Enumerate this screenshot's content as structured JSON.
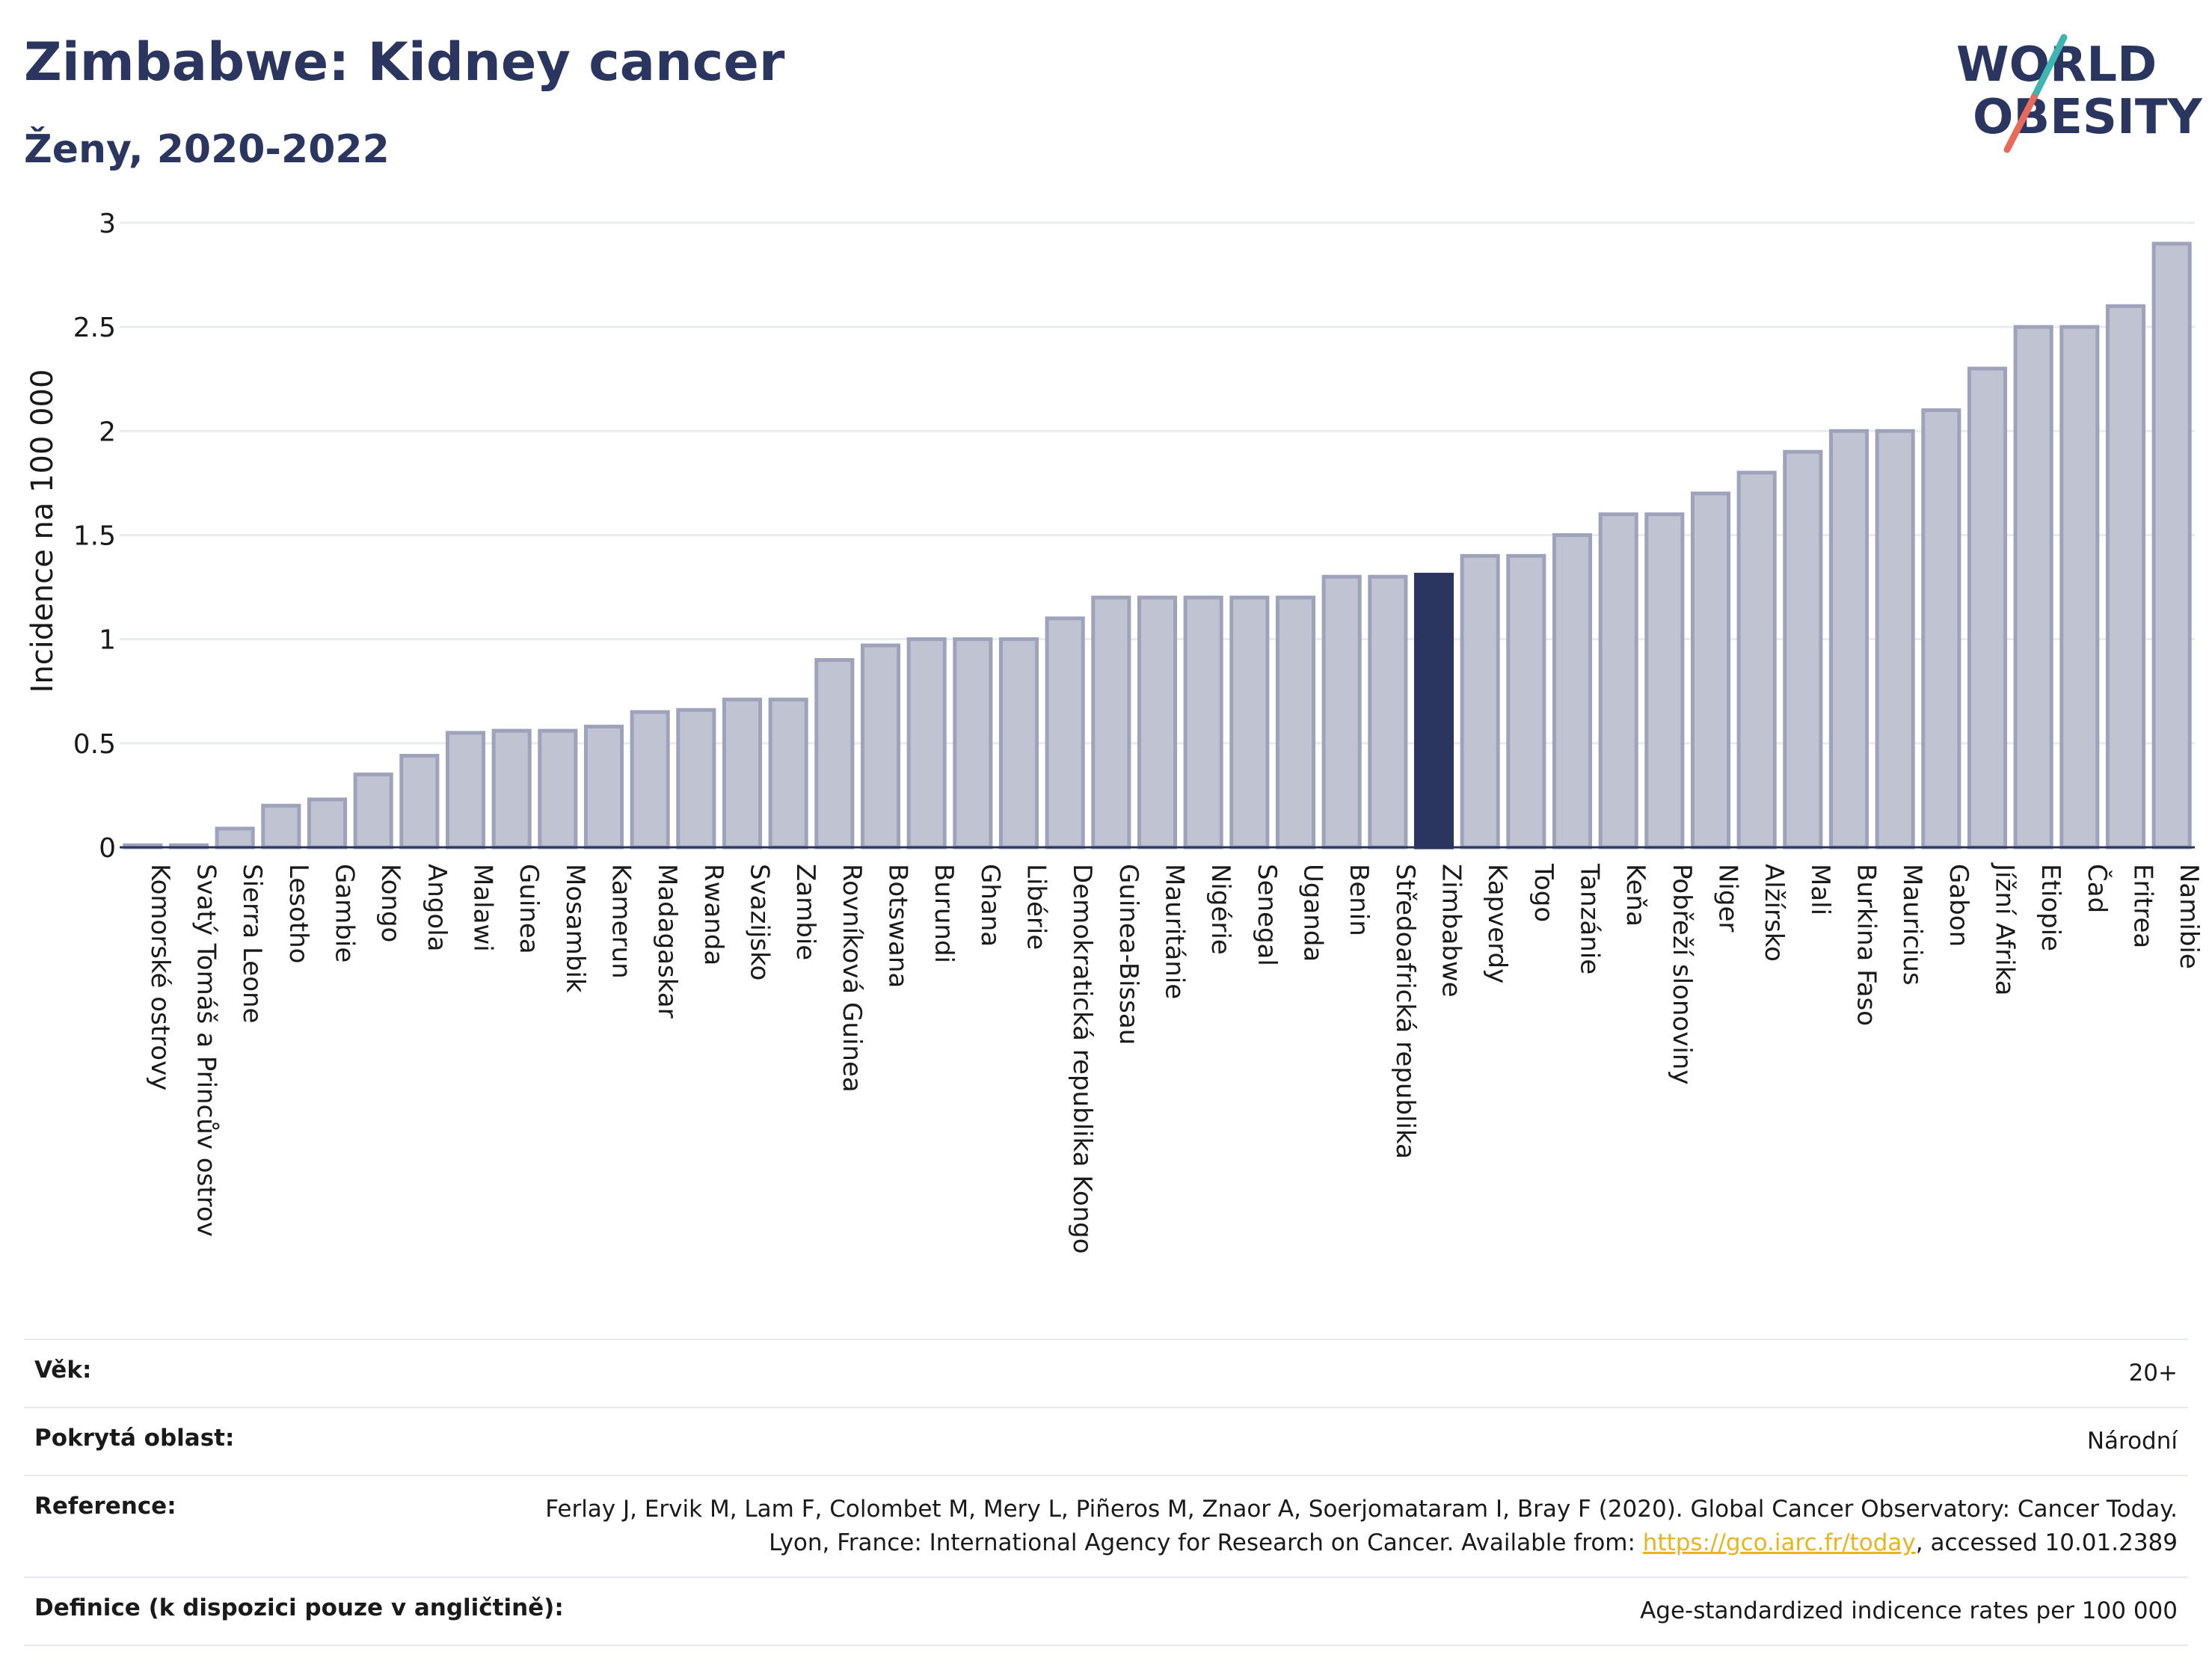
{
  "title": "Zimbabwe: Kidney cancer",
  "subtitle": "Ženy, 2020-2022",
  "logo": {
    "line1": "WORLD",
    "line2": "OBESITY"
  },
  "colors": {
    "bar": "#bfc3d2",
    "bar_edge": "#9ea3bb",
    "highlight": "#2b3660",
    "grid": "#e8ebf0",
    "title": "#2b3660",
    "link": "#e8b51e"
  },
  "chart_data": {
    "type": "bar",
    "ylabel": "Incidence na 100 000",
    "ylim": [
      0,
      3
    ],
    "yticks": [
      "0",
      "0.5",
      "1",
      "1.5",
      "2",
      "2.5",
      "3"
    ],
    "highlight": "Zimbabwe",
    "categories": [
      "Komorské ostrovy",
      "Svatý Tomáš a Princův ostrov",
      "Sierra Leone",
      "Lesotho",
      "Gambie",
      "Kongo",
      "Angola",
      "Malawi",
      "Guinea",
      "Mosambik",
      "Kamerun",
      "Madagaskar",
      "Rwanda",
      "Svazijsko",
      "Zambie",
      "Rovníková Guinea",
      "Botswana",
      "Burundi",
      "Ghana",
      "Libérie",
      "Demokratická republika Kongo",
      "Guinea-Bissau",
      "Mauritánie",
      "Nigérie",
      "Senegal",
      "Uganda",
      "Benin",
      "Středoafrická republika",
      "Zimbabwe",
      "Kapverdy",
      "Togo",
      "Tanzánie",
      "Keňa",
      "Pobřeží slonoviny",
      "Niger",
      "Alžírsko",
      "Mali",
      "Burkina Faso",
      "Mauricius",
      "Gabon",
      "Jížní Afrika",
      "Etiopie",
      "Čad",
      "Eritrea",
      "Namibie"
    ],
    "values": [
      0.01,
      0.01,
      0.09,
      0.2,
      0.23,
      0.35,
      0.44,
      0.55,
      0.56,
      0.56,
      0.58,
      0.65,
      0.66,
      0.71,
      0.71,
      0.9,
      0.97,
      1.0,
      1.0,
      1.0,
      1.1,
      1.2,
      1.2,
      1.2,
      1.2,
      1.2,
      1.3,
      1.3,
      1.31,
      1.4,
      1.4,
      1.5,
      1.6,
      1.6,
      1.7,
      1.8,
      1.9,
      2.0,
      2.0,
      2.1,
      2.3,
      2.5,
      2.5,
      2.6,
      2.9
    ]
  },
  "info": {
    "age_label": "Věk:",
    "age_value": "20+",
    "area_label": "Pokrytá oblast:",
    "area_value": "Národní",
    "reference_label": "Reference:",
    "reference_text": "Ferlay J, Ervik M, Lam F, Colombet M, Mery L, Piñeros M, Znaor A, Soerjomataram I, Bray F (2020). Global Cancer Observatory: Cancer Today. Lyon, France: International Agency for Research on Cancer. Available from:",
    "reference_link": "https://gco.iarc.fr/today",
    "reference_suffix": ", accessed 10.01.2389",
    "definition_label": "Definice (k dispozici pouze v angličtině):",
    "definition_value": "Age-standardized indicence rates per 100 000"
  }
}
